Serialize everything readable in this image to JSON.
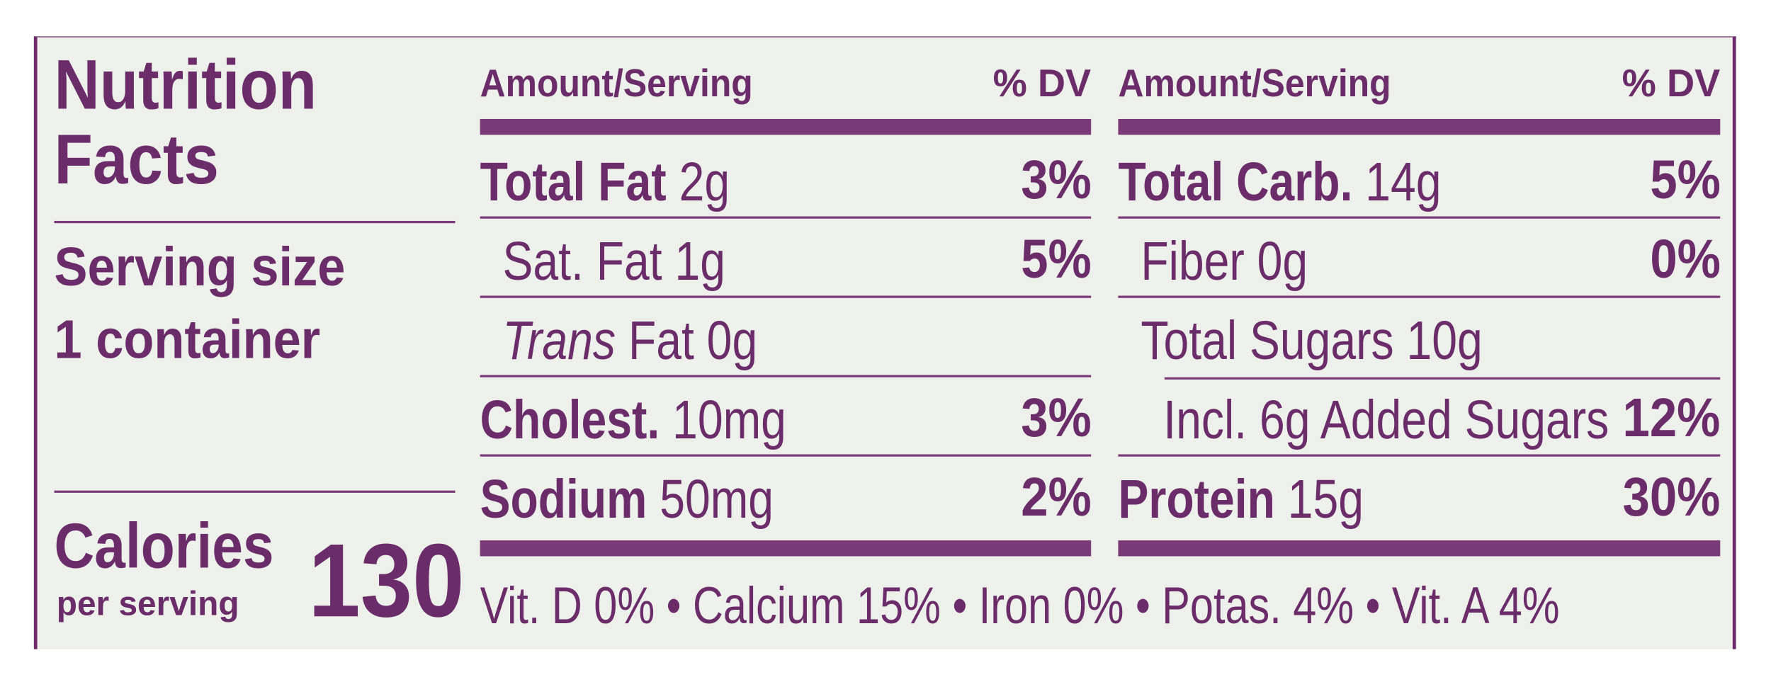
{
  "title": "Nutrition Facts",
  "serving": {
    "label": "Serving size",
    "amount": "1 container"
  },
  "calories": {
    "label": "Calories",
    "sublabel": "per serving",
    "value": 130
  },
  "columns": [
    {
      "header": {
        "amount": "Amount/Serving",
        "dv": "% DV"
      },
      "rows": [
        {
          "name": "Total Fat",
          "amount": "2g",
          "dv": "3%"
        },
        {
          "name": "Sat. Fat 1g",
          "dv": "5%"
        },
        {
          "italic": "Trans",
          "name": "Fat 0g"
        },
        {
          "name": "Cholest.",
          "amount": "10mg",
          "dv": "3%"
        },
        {
          "name": "Sodium",
          "amount": "50mg",
          "dv": "2%"
        }
      ]
    },
    {
      "header": {
        "amount": "Amount/Serving",
        "dv": "% DV"
      },
      "rows": [
        {
          "name": "Total Carb.",
          "amount": "14g",
          "dv": "5%"
        },
        {
          "name": "Fiber 0g",
          "dv": "0%"
        },
        {
          "name": "Total Sugars 10g"
        },
        {
          "name": "Incl. 6g Added Sugars",
          "dv": "12%"
        },
        {
          "name": "Protein",
          "amount": "15g",
          "dv": "30%"
        }
      ]
    }
  ],
  "footer": "Vit. D 0% • Calcium 15% • Iron 0% • Potas. 4% • Vit. A 4%"
}
